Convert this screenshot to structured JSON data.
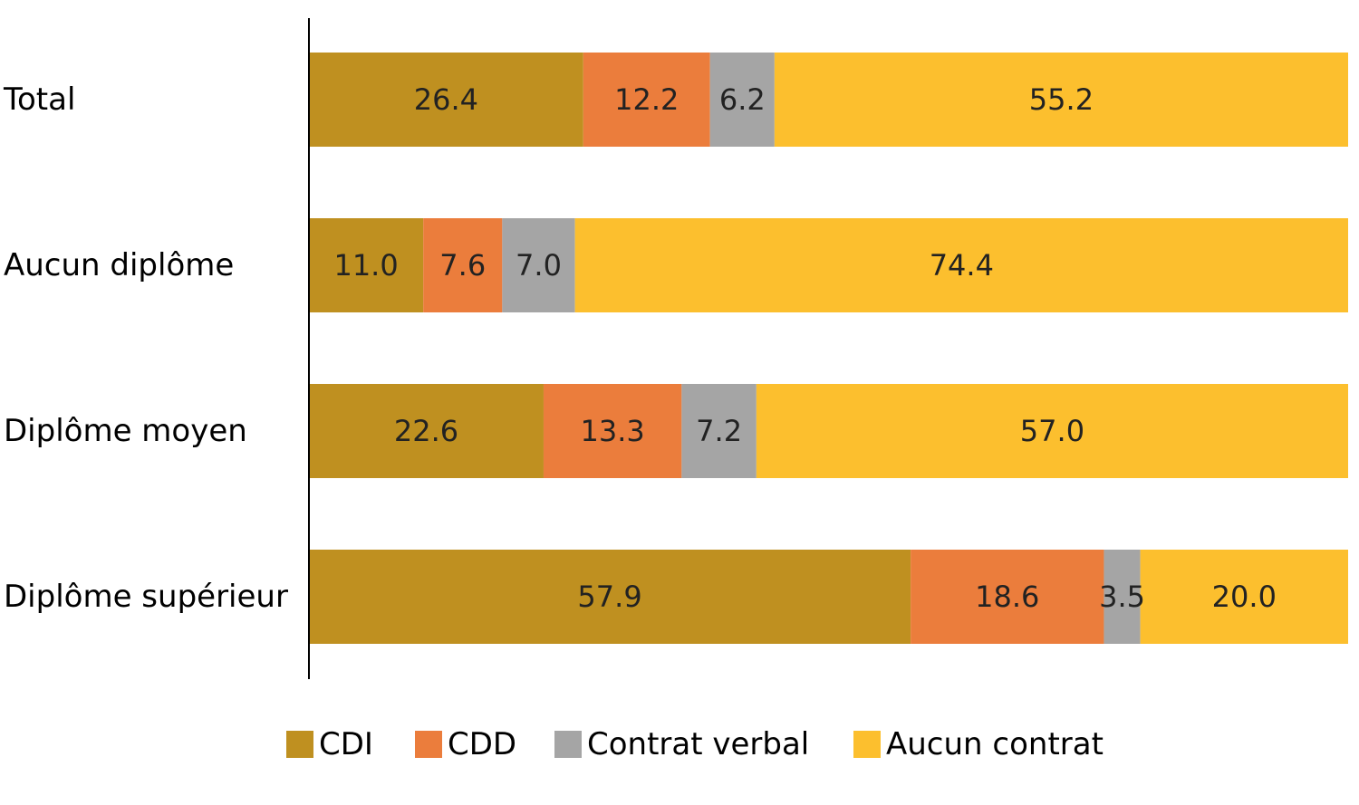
{
  "chart_data": {
    "type": "bar",
    "orientation": "horizontal",
    "stacked": true,
    "categories": [
      "Total",
      "Aucun diplôme",
      "Diplôme moyen",
      "Diplôme supérieur"
    ],
    "series": [
      {
        "name": "CDI",
        "values": [
          26.4,
          11.0,
          22.6,
          57.9
        ],
        "color": "#BF9020"
      },
      {
        "name": "CDD",
        "values": [
          12.2,
          7.6,
          13.3,
          18.6
        ],
        "color": "#EB7D3C"
      },
      {
        "name": "Contrat verbal",
        "values": [
          6.2,
          7.0,
          7.2,
          3.5
        ],
        "color": "#A5A5A5"
      },
      {
        "name": "Aucun contrat",
        "values": [
          55.2,
          74.4,
          57.0,
          20.0
        ],
        "color": "#FCBF2E"
      }
    ],
    "value_labels": [
      [
        "26.4",
        "11.0",
        "22.6",
        "57.9"
      ],
      [
        "12.2",
        "7.6",
        "13.3",
        "18.6"
      ],
      [
        "6.2",
        "7.0",
        "7.2",
        "3.5"
      ],
      [
        "55.2",
        "74.4",
        "57.0",
        "20.0"
      ]
    ],
    "xlim": [
      0,
      100
    ],
    "grid": false,
    "legend_position": "bottom",
    "title": "",
    "xlabel": "",
    "ylabel": ""
  }
}
